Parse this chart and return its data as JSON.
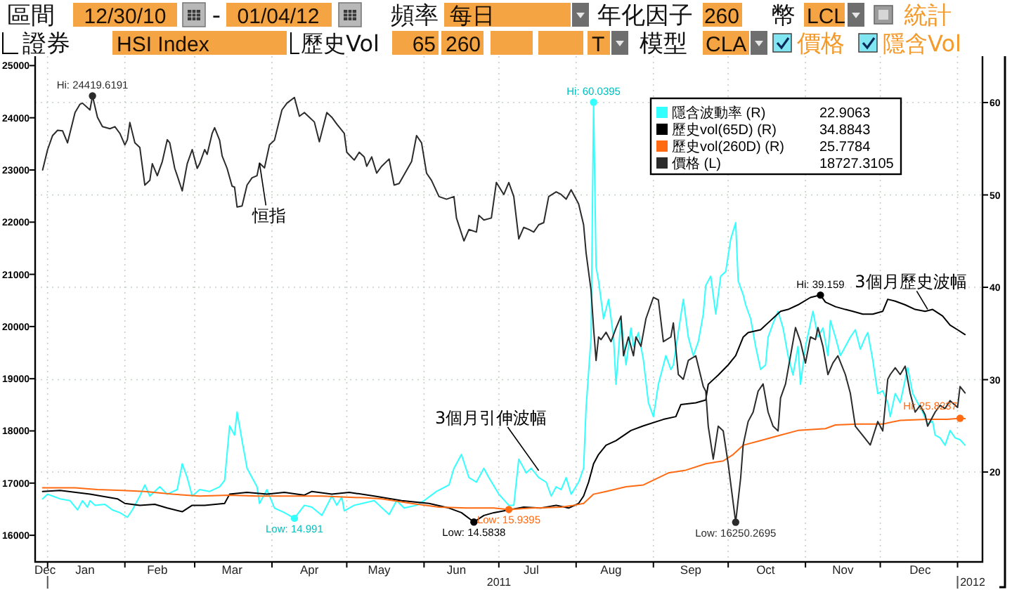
{
  "chart_data": {
    "type": "line",
    "xlim": [
      "2010-12-27",
      "2012-01-11"
    ],
    "xticks": [
      {
        "value": "2010-12-31",
        "label": "Dec"
      },
      {
        "value": "2011-01-01",
        "label": null
      },
      {
        "value": "2011-01-16",
        "label": "Jan"
      },
      {
        "value": "2011-02-01",
        "label": null
      },
      {
        "value": "2011-02-14",
        "label": "Feb"
      },
      {
        "value": "2011-03-01",
        "label": null
      },
      {
        "value": "2011-03-16",
        "label": "Mar"
      },
      {
        "value": "2011-04-01",
        "label": null
      },
      {
        "value": "2011-04-16",
        "label": "Apr"
      },
      {
        "value": "2011-05-01",
        "label": null
      },
      {
        "value": "2011-05-14",
        "label": "May"
      },
      {
        "value": "2011-06-01",
        "label": null
      },
      {
        "value": "2011-06-14",
        "label": "Jun"
      },
      {
        "value": "2011-07-01",
        "label": null
      },
      {
        "value": "2011-07-14",
        "label": "Jul"
      },
      {
        "value": "2011-08-01",
        "label": null
      },
      {
        "value": "2011-08-15",
        "label": "Aug"
      },
      {
        "value": "2011-09-01",
        "label": null
      },
      {
        "value": "2011-09-16",
        "label": "Sep"
      },
      {
        "value": "2011-10-01",
        "label": null
      },
      {
        "value": "2011-10-16",
        "label": "Oct"
      },
      {
        "value": "2011-11-01",
        "label": null
      },
      {
        "value": "2011-11-16",
        "label": "Nov"
      },
      {
        "value": "2011-12-01",
        "label": null
      },
      {
        "value": "2011-12-17",
        "label": "Dec"
      },
      {
        "value": "2012-01-01",
        "label": null
      }
    ],
    "ylim": [
      15490,
      25180
    ],
    "yticks": [
      16000,
      17000,
      18000,
      19000,
      20000,
      21000,
      22000,
      23000,
      24000,
      25000
    ],
    "y2lim": [
      10.27,
      65.02
    ],
    "y2ticks": [
      20,
      30,
      40,
      50,
      60
    ],
    "grid": true,
    "legend": "top right",
    "series": [
      {
        "name": "隱含波動率 (R)",
        "axis": "y2",
        "color": "#33ffff",
        "x": [
          "2010-12-30",
          "2011-01-01",
          "2011-01-03",
          "2011-01-06",
          "2011-01-10",
          "2011-01-13",
          "2011-01-15",
          "2011-01-17",
          "2011-01-18",
          "2011-01-20",
          "2011-01-24",
          "2011-01-27",
          "2011-01-30",
          "2011-02-02",
          "2011-02-04",
          "2011-02-07",
          "2011-02-09",
          "2011-02-11",
          "2011-02-15",
          "2011-02-18",
          "2011-02-22",
          "2011-02-24",
          "2011-02-26",
          "2011-02-28",
          "2011-03-03",
          "2011-03-07",
          "2011-03-11",
          "2011-03-13",
          "2011-03-15",
          "2011-03-17",
          "2011-03-18",
          "2011-03-20",
          "2011-03-22",
          "2011-03-26",
          "2011-03-27",
          "2011-03-30",
          "2011-04-02",
          "2011-04-06",
          "2011-04-10",
          "2011-04-14",
          "2011-04-17",
          "2011-04-21",
          "2011-04-25",
          "2011-04-27",
          "2011-04-29",
          "2011-04-30",
          "2011-05-04",
          "2011-05-12",
          "2011-05-14",
          "2011-05-18",
          "2011-05-21",
          "2011-05-24",
          "2011-05-29",
          "2011-06-01",
          "2011-06-06",
          "2011-06-11",
          "2011-06-13",
          "2011-06-16",
          "2011-06-19",
          "2011-06-22",
          "2011-06-25",
          "2011-06-27",
          "2011-07-01",
          "2011-07-05",
          "2011-07-07",
          "2011-07-09",
          "2011-07-12",
          "2011-07-14",
          "2011-07-17",
          "2011-07-20",
          "2011-07-22",
          "2011-07-24",
          "2011-07-26",
          "2011-07-28",
          "2011-07-30",
          "2011-08-02",
          "2011-08-04",
          "2011-08-05",
          "2011-08-07",
          "2011-08-08",
          "2011-08-09",
          "2011-08-10",
          "2011-08-12",
          "2011-08-14",
          "2011-08-16",
          "2011-08-17",
          "2011-08-19",
          "2011-08-21",
          "2011-08-23",
          "2011-08-24",
          "2011-08-26",
          "2011-08-28",
          "2011-08-30",
          "2011-09-01",
          "2011-09-03",
          "2011-09-06",
          "2011-09-08",
          "2011-09-09",
          "2011-09-13",
          "2011-09-15",
          "2011-09-17",
          "2011-09-19",
          "2011-09-21",
          "2011-09-22",
          "2011-09-24",
          "2011-09-26",
          "2011-09-28",
          "2011-09-30",
          "2011-10-02",
          "2011-10-04",
          "2011-10-05",
          "2011-10-07",
          "2011-10-08",
          "2011-10-10",
          "2011-10-12",
          "2011-10-14",
          "2011-10-16",
          "2011-10-17",
          "2011-10-19",
          "2011-10-21",
          "2011-10-23",
          "2011-10-25",
          "2011-10-27",
          "2011-10-29",
          "2011-10-30",
          "2011-11-01",
          "2011-11-03",
          "2011-11-04",
          "2011-11-06",
          "2011-11-08",
          "2011-11-10",
          "2011-11-11",
          "2011-11-13",
          "2011-11-15",
          "2011-11-17",
          "2011-11-19",
          "2011-11-21",
          "2011-11-23",
          "2011-11-25",
          "2011-11-26",
          "2011-11-28",
          "2011-11-30",
          "2011-12-02",
          "2011-12-04",
          "2011-12-05",
          "2011-12-07",
          "2011-12-09",
          "2011-12-11",
          "2011-12-12",
          "2011-12-14",
          "2011-12-16",
          "2011-12-18",
          "2011-12-20",
          "2011-12-22",
          "2011-12-23",
          "2011-12-25",
          "2011-12-27",
          "2011-12-29",
          "2011-12-31",
          "2012-01-02",
          "2012-01-04"
        ],
        "values": [
          17.1,
          17.6,
          17.4,
          17.1,
          16.9,
          15.9,
          16.9,
          16.2,
          16.9,
          16.4,
          16.5,
          15.9,
          15.6,
          15.1,
          15.9,
          17.4,
          18.6,
          17.4,
          18.4,
          17.6,
          18.1,
          20.9,
          19.4,
          17.4,
          18.1,
          17.9,
          18.4,
          19.1,
          25.0,
          24.0,
          26.5,
          23.4,
          20.4,
          18.4,
          16.6,
          18.1,
          16.1,
          15.6,
          14.991,
          16.4,
          16.2,
          15.3,
          17.4,
          16.4,
          17.3,
          15.8,
          16.4,
          16.9,
          16.4,
          15.4,
          16.9,
          16.1,
          16.4,
          16.9,
          17.9,
          18.6,
          20.4,
          21.9,
          19.4,
          18.9,
          20.4,
          19.4,
          17.6,
          16.4,
          16.4,
          21.4,
          19.9,
          20.4,
          19.4,
          18.9,
          17.4,
          18.4,
          18.1,
          19.4,
          17.6,
          18.9,
          20.4,
          27.0,
          34.6,
          60.0395,
          42.2,
          40.7,
          36.6,
          38.7,
          34.6,
          29.5,
          36.6,
          31.6,
          35.6,
          33.6,
          35.1,
          32.1,
          27.5,
          26.0,
          29.5,
          32.6,
          31.1,
          31.6,
          38.7,
          34.6,
          32.6,
          34.1,
          37.1,
          40.2,
          41.2,
          37.1,
          41.2,
          41.7,
          45.2,
          47.0,
          40.7,
          39.2,
          38.1,
          36.6,
          33.6,
          31.1,
          31.6,
          34.6,
          36.1,
          37.4,
          35.6,
          32.6,
          30.5,
          33.6,
          29.5,
          33.6,
          36.1,
          37.4,
          34.6,
          35.6,
          32.6,
          36.4,
          34.6,
          32.6,
          33.6,
          34.6,
          35.4,
          33.3,
          34.6,
          35.1,
          32.1,
          28.5,
          28.8,
          27.5,
          26.0,
          28.5,
          27.5,
          30.0,
          31.3,
          28.5,
          27.5,
          26.5,
          25.2,
          25.5,
          24.0,
          23.7,
          22.9,
          24.5,
          23.7,
          23.5,
          22.9063
        ]
      },
      {
        "name": "歷史vol(65D) (R)",
        "axis": "y2",
        "color": "#000000",
        "x": [
          "2010-12-30",
          "2011-01-06",
          "2011-01-18",
          "2011-01-29",
          "2011-02-01",
          "2011-02-07",
          "2011-02-13",
          "2011-02-18",
          "2011-02-24",
          "2011-02-28",
          "2011-03-05",
          "2011-03-13",
          "2011-03-15",
          "2011-03-22",
          "2011-03-30",
          "2011-04-06",
          "2011-04-14",
          "2011-04-17",
          "2011-04-25",
          "2011-05-02",
          "2011-05-12",
          "2011-05-23",
          "2011-06-03",
          "2011-06-11",
          "2011-06-16",
          "2011-06-21",
          "2011-06-25",
          "2011-06-29",
          "2011-07-05",
          "2011-07-11",
          "2011-07-18",
          "2011-07-24",
          "2011-07-29",
          "2011-08-02",
          "2011-08-04",
          "2011-08-06",
          "2011-08-08",
          "2011-08-10",
          "2011-08-13",
          "2011-08-17",
          "2011-08-23",
          "2011-08-28",
          "2011-09-05",
          "2011-09-10",
          "2011-09-12",
          "2011-09-18",
          "2011-09-22",
          "2011-09-23",
          "2011-09-27",
          "2011-10-01",
          "2011-10-04",
          "2011-10-07",
          "2011-10-09",
          "2011-10-14",
          "2011-10-18",
          "2011-10-22",
          "2011-10-25",
          "2011-10-29",
          "2011-11-03",
          "2011-11-07",
          "2011-11-09",
          "2011-11-13",
          "2011-11-17",
          "2011-11-20",
          "2011-11-24",
          "2011-11-28",
          "2011-12-02",
          "2011-12-04",
          "2011-12-07",
          "2011-12-11",
          "2011-12-15",
          "2011-12-19",
          "2011-12-22",
          "2011-12-26",
          "2011-12-29",
          "2012-01-01",
          "2012-01-04"
        ],
        "values": [
          17.9,
          18.0,
          17.6,
          17.1,
          16.6,
          16.4,
          16.5,
          16.1,
          15.7,
          16.4,
          16.4,
          16.6,
          17.6,
          17.8,
          17.6,
          17.8,
          17.5,
          17.9,
          17.6,
          17.8,
          17.4,
          16.9,
          16.6,
          16.1,
          15.6,
          14.5838,
          15.3,
          15.6,
          15.9,
          16.2,
          16.1,
          16.4,
          16.1,
          16.6,
          17.4,
          18.9,
          20.9,
          21.9,
          22.9,
          23.4,
          24.5,
          25.0,
          25.7,
          26.0,
          27.3,
          27.5,
          27.8,
          29.5,
          30.5,
          31.6,
          32.6,
          34.6,
          35.1,
          35.4,
          36.4,
          37.4,
          37.6,
          38.1,
          38.9,
          39.159,
          38.4,
          37.9,
          37.6,
          37.4,
          37.1,
          37.1,
          37.4,
          38.7,
          38.5,
          38.1,
          37.6,
          37.4,
          37.6,
          36.9,
          35.9,
          35.4,
          34.8843
        ]
      },
      {
        "name": "歷史vol(260D) (R)",
        "axis": "y2",
        "color": "#ff6a13",
        "x": [
          "2010-12-30",
          "2011-01-12",
          "2011-01-21",
          "2011-01-31",
          "2011-02-09",
          "2011-02-20",
          "2011-03-03",
          "2011-03-15",
          "2011-03-26",
          "2011-04-06",
          "2011-04-21",
          "2011-05-09",
          "2011-05-15",
          "2011-05-27",
          "2011-06-07",
          "2011-06-18",
          "2011-06-29",
          "2011-07-05",
          "2011-07-14",
          "2011-07-26",
          "2011-07-31",
          "2011-08-04",
          "2011-08-08",
          "2011-08-13",
          "2011-08-21",
          "2011-08-28",
          "2011-09-07",
          "2011-09-14",
          "2011-09-22",
          "2011-09-29",
          "2011-10-03",
          "2011-10-07",
          "2011-10-14",
          "2011-10-22",
          "2011-10-29",
          "2011-11-09",
          "2011-11-13",
          "2011-11-22",
          "2011-12-02",
          "2011-12-09",
          "2011-12-20",
          "2011-12-28",
          "2012-01-02",
          "2012-01-04"
        ],
        "values": [
          18.3,
          18.3,
          18.1,
          18.0,
          17.9,
          17.6,
          17.4,
          17.5,
          17.4,
          17.4,
          17.4,
          17.2,
          17.1,
          16.6,
          16.2,
          16.1,
          16.1,
          15.9395,
          16.1,
          16.2,
          16.4,
          16.6,
          17.6,
          17.9,
          18.4,
          18.6,
          19.9,
          20.2,
          20.9,
          21.2,
          21.9,
          22.9,
          23.4,
          24.0,
          24.5,
          24.7,
          25.1,
          25.2,
          25.2,
          25.6,
          25.7,
          25.7,
          25.8237,
          25.7784
        ]
      },
      {
        "name": "價格 (L)",
        "color": "#2b2b2b",
        "x": [
          "2010-12-30",
          "2011-01-01",
          "2011-01-03",
          "2011-01-05",
          "2011-01-07",
          "2011-01-09",
          "2011-01-12",
          "2011-01-14",
          "2011-01-15",
          "2011-01-18",
          "2011-01-19",
          "2011-01-21",
          "2011-01-23",
          "2011-01-26",
          "2011-01-28",
          "2011-01-30",
          "2011-02-01",
          "2011-02-02",
          "2011-02-03",
          "2011-02-05",
          "2011-02-07",
          "2011-02-09",
          "2011-02-11",
          "2011-02-12",
          "2011-02-14",
          "2011-02-16",
          "2011-02-18",
          "2011-02-19",
          "2011-02-21",
          "2011-02-22",
          "2011-02-24",
          "2011-02-26",
          "2011-02-28",
          "2011-03-02",
          "2011-03-03",
          "2011-03-05",
          "2011-03-06",
          "2011-03-08",
          "2011-03-09",
          "2011-03-11",
          "2011-03-12",
          "2011-03-14",
          "2011-03-16",
          "2011-03-17",
          "2011-03-18",
          "2011-03-20",
          "2011-03-22",
          "2011-03-24",
          "2011-03-26",
          "2011-03-27",
          "2011-03-29",
          "2011-03-31",
          "2011-04-02",
          "2011-04-05",
          "2011-04-07",
          "2011-04-10",
          "2011-04-12",
          "2011-04-14",
          "2011-04-16",
          "2011-04-18",
          "2011-04-20",
          "2011-04-23",
          "2011-04-25",
          "2011-04-27",
          "2011-04-30",
          "2011-05-01",
          "2011-05-04",
          "2011-05-06",
          "2011-05-08",
          "2011-05-09",
          "2011-05-11",
          "2011-05-13",
          "2011-05-15",
          "2011-05-18",
          "2011-05-20",
          "2011-05-22",
          "2011-05-27",
          "2011-05-29",
          "2011-05-31",
          "2011-06-02",
          "2011-06-04",
          "2011-06-07",
          "2011-06-10",
          "2011-06-13",
          "2011-06-14",
          "2011-06-17",
          "2011-06-19",
          "2011-06-22",
          "2011-06-23",
          "2011-06-25",
          "2011-06-28",
          "2011-06-30",
          "2011-07-03",
          "2011-07-05",
          "2011-07-07",
          "2011-07-09",
          "2011-07-11",
          "2011-07-13",
          "2011-07-15",
          "2011-07-17",
          "2011-07-19",
          "2011-07-21",
          "2011-07-24",
          "2011-07-26",
          "2011-07-28",
          "2011-07-30",
          "2011-08-02",
          "2011-08-04",
          "2011-08-05",
          "2011-08-06",
          "2011-08-07",
          "2011-08-08",
          "2011-08-09",
          "2011-08-10",
          "2011-08-11",
          "2011-08-13",
          "2011-08-15",
          "2011-08-17",
          "2011-08-19",
          "2011-08-20",
          "2011-08-22",
          "2011-08-24",
          "2011-08-25",
          "2011-08-27",
          "2011-08-29",
          "2011-09-01",
          "2011-09-03",
          "2011-09-05",
          "2011-09-08",
          "2011-09-09",
          "2011-09-11",
          "2011-09-13",
          "2011-09-15",
          "2011-09-18",
          "2011-09-21",
          "2011-09-22",
          "2011-09-23",
          "2011-09-25",
          "2011-09-27",
          "2011-09-29",
          "2011-10-01",
          "2011-10-04",
          "2011-10-06",
          "2011-10-07",
          "2011-10-09",
          "2011-10-11",
          "2011-10-13",
          "2011-10-15",
          "2011-10-17",
          "2011-10-19",
          "2011-10-21",
          "2011-10-22",
          "2011-10-24",
          "2011-10-26",
          "2011-10-28",
          "2011-10-30",
          "2011-11-01",
          "2011-11-03",
          "2011-11-05",
          "2011-11-06",
          "2011-11-08",
          "2011-11-10",
          "2011-11-12",
          "2011-11-14",
          "2011-11-17",
          "2011-11-19",
          "2011-11-21",
          "2011-11-24",
          "2011-11-27",
          "2011-11-30",
          "2011-12-02",
          "2011-12-04",
          "2011-12-05",
          "2011-12-07",
          "2011-12-09",
          "2011-12-11",
          "2011-12-13",
          "2011-12-15",
          "2011-12-17",
          "2011-12-19",
          "2011-12-20",
          "2011-12-23",
          "2011-12-25",
          "2011-12-27",
          "2011-12-29",
          "2012-01-01",
          "2012-01-02",
          "2012-01-04"
        ],
        "values": [
          23000,
          23390,
          23660,
          23760,
          23750,
          23520,
          24100,
          24260,
          24280,
          24150,
          24419.6191,
          24010,
          23830,
          23790,
          23830,
          23700,
          23480,
          23580,
          23910,
          23520,
          23430,
          22710,
          22800,
          23120,
          22890,
          23160,
          23580,
          23520,
          23030,
          22890,
          22600,
          23120,
          23390,
          23030,
          23120,
          23390,
          23300,
          23700,
          23810,
          23570,
          23270,
          23030,
          22690,
          22670,
          22290,
          22310,
          22710,
          22850,
          22890,
          23130,
          23040,
          23480,
          23570,
          24150,
          24280,
          24390,
          24030,
          24100,
          24010,
          23920,
          23540,
          24100,
          24010,
          23880,
          23700,
          23340,
          23190,
          23340,
          23250,
          23070,
          23250,
          22940,
          23070,
          23210,
          22710,
          22740,
          23160,
          23660,
          23520,
          22940,
          22800,
          22490,
          22440,
          22490,
          22080,
          21640,
          21860,
          21810,
          22130,
          22040,
          22080,
          22760,
          22530,
          22760,
          22490,
          21680,
          21900,
          21860,
          21810,
          21950,
          21990,
          22490,
          22580,
          22530,
          22440,
          22620,
          22350,
          21950,
          21410,
          21050,
          20690,
          19970,
          19350,
          19800,
          19750,
          19890,
          19710,
          19970,
          20200,
          19440,
          19800,
          19440,
          19800,
          19620,
          20150,
          20560,
          20510,
          19710,
          19800,
          20070,
          19080,
          18990,
          19350,
          19440,
          18850,
          18760,
          18090,
          17460,
          18090,
          18000,
          17370,
          16250.2695,
          17100,
          17730,
          18180,
          18360,
          18760,
          18900,
          18360,
          18090,
          18000,
          18630,
          18900,
          19440,
          19980,
          19710,
          19300,
          19800,
          19750,
          19980,
          19620,
          19080,
          19300,
          19440,
          19080,
          18720,
          18090,
          17910,
          17730,
          18180,
          18000,
          18990,
          19080,
          19210,
          19080,
          19240,
          18720,
          18360,
          18490,
          18310,
          18090,
          18360,
          18490,
          18430,
          18580,
          18450,
          18850,
          18727.3105
        ]
      },
      {
        "type": "scatter",
        "axis": "y2",
        "color": "#33ffff",
        "marker": "circle",
        "x": [
          "2011-04-10",
          "2011-08-08"
        ],
        "values": [
          14.991,
          60.0395
        ],
        "value_labels": [
          "Low: 14.991",
          "Hi: 60.0395"
        ]
      },
      {
        "type": "scatter",
        "axis": "y2",
        "color": "#000000",
        "marker": "circle",
        "x": [
          "2011-06-21",
          "2011-11-07"
        ],
        "values": [
          14.5838,
          39.159
        ],
        "value_labels": [
          "Low: 14.5838",
          "Hi: 39.159"
        ]
      },
      {
        "type": "scatter",
        "axis": "y2",
        "color": "#ff6a13",
        "marker": "circle",
        "x": [
          "2011-07-05",
          "2012-01-02"
        ],
        "values": [
          15.9395,
          25.8237
        ],
        "value_labels": [
          "Low: 15.9395",
          "Hi: 25.8237"
        ]
      },
      {
        "type": "scatter",
        "color": "#2b2b2b",
        "marker": "circle",
        "x": [
          "2011-01-19",
          "2011-10-04"
        ],
        "values": [
          24419.6191,
          16250.2695
        ],
        "value_labels": [
          "Hi: 24419.6191",
          "Low: 16250.2695"
        ]
      }
    ],
    "annotations": [
      "區間",
      "12/30/10",
      "-",
      "01/04/12",
      "頻率",
      "每日",
      "年化因子",
      "260",
      "幣",
      "LCL",
      "統計",
      "證券",
      "HSI Index",
      "歷史Vol",
      "65",
      "260",
      "T",
      "模型",
      "CLA",
      "價格",
      "隱含Vol",
      "2011",
      "2012",
      "22.9063",
      "34.8843",
      "25.7784",
      "18727.3105",
      {
        "text": "恒指",
        "x": "2011-03-27",
        "y": 23130
      },
      {
        "text": "3個月引伸波幅",
        "x": "2011-07-17",
        "y": 17240
      },
      {
        "text": "3個月歷史波幅",
        "x": "2011-12-20",
        "y": 20330
      }
    ]
  }
}
